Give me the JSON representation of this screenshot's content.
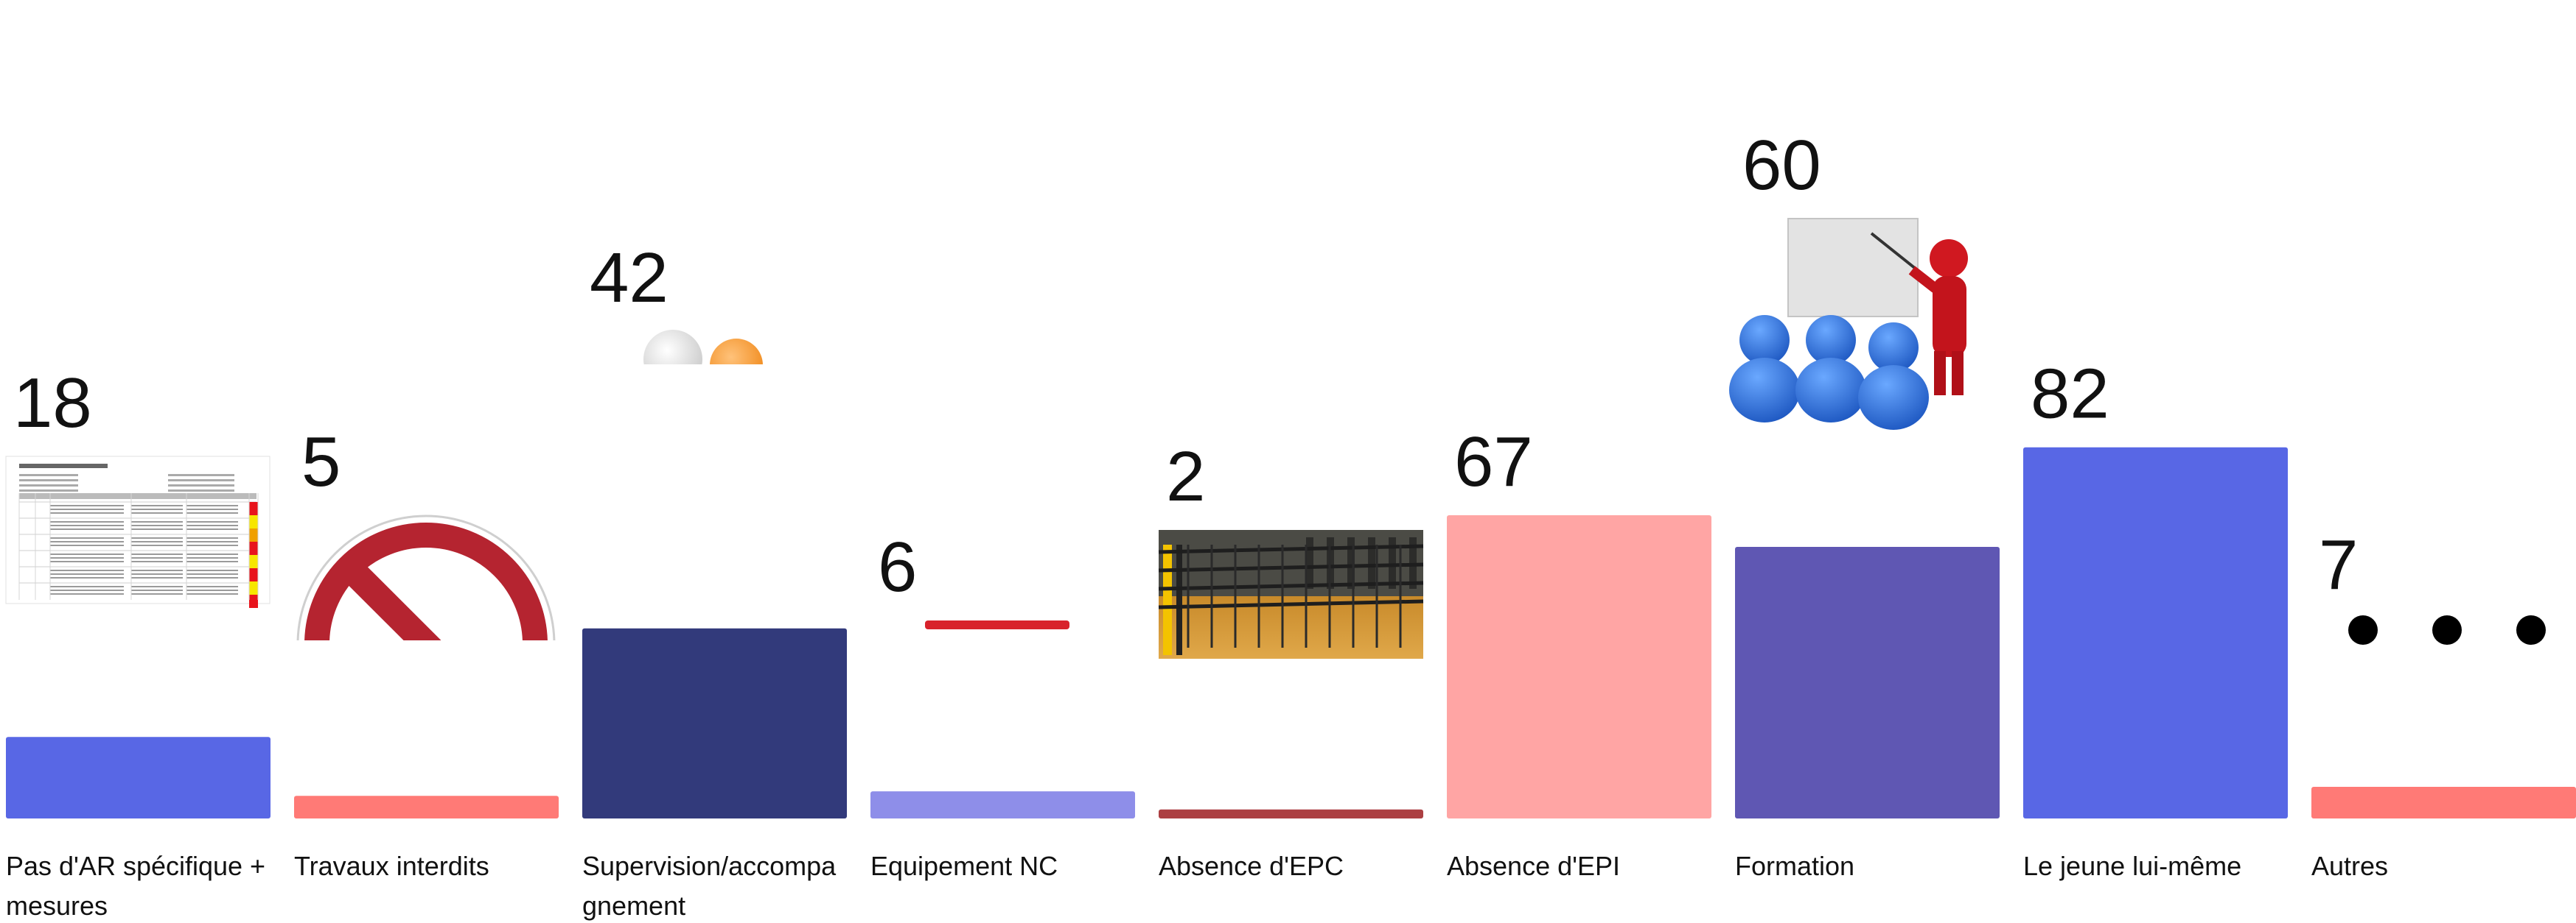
{
  "chart_data": {
    "type": "bar",
    "categories": [
      "Pas d'AR spécifique + mesures",
      "Travaux interdits",
      "Supervision/accompagnement",
      "Equipement NC",
      "Absence d'EPC",
      "Absence d'EPI",
      "Formation",
      "Le jeune lui-même",
      "Autres"
    ],
    "category_lines": [
      [
        "Pas d'AR spécifique +",
        "mesures"
      ],
      [
        "Travaux interdits"
      ],
      [
        "Supervision/accompa",
        "gnement"
      ],
      [
        "Equipement NC"
      ],
      [
        "Absence d'EPC"
      ],
      [
        "Absence d'EPI"
      ],
      [
        "Formation"
      ],
      [
        "Le jeune lui-même"
      ],
      [
        "Autres"
      ]
    ],
    "values": [
      18,
      5,
      42,
      6,
      2,
      67,
      60,
      82,
      7
    ],
    "value_labels": [
      "18",
      "5",
      "42",
      "6",
      "2",
      "67",
      "60",
      "82",
      "7"
    ],
    "colors": [
      "#5867e5",
      "#ff7a76",
      "#323a7b",
      "#8e8ee9",
      "#ac3f42",
      "#ffa5a4",
      "#5f57b3",
      "#5867e5",
      "#ff7a76"
    ],
    "icons": [
      "risk-assessment-document-icon",
      "prohibition-sign-icon",
      "supervision-figures-icon",
      "red-stripe-icon",
      "safety-railing-photo-icon",
      "",
      "training-presentation-icon",
      "",
      "ellipsis-icon"
    ],
    "title": "",
    "xlabel": "",
    "ylabel": "",
    "ylim": [
      0,
      100
    ],
    "grid": false,
    "legend": "none"
  }
}
